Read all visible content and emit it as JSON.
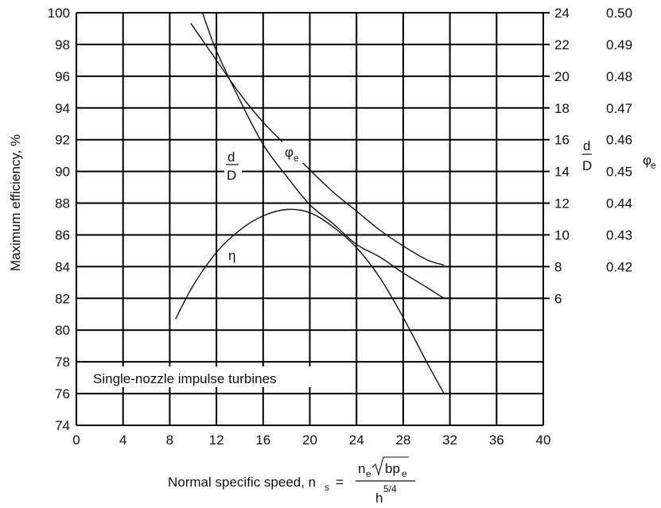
{
  "chart_data": {
    "type": "line",
    "title": "",
    "annotation": "Single-nozzle impulse turbines",
    "xlabel": {
      "text": "Normal specific speed, n",
      "sub": "s",
      "equals": "=",
      "num_n": "n",
      "num_n_sub": "e",
      "num_root": "bp",
      "num_root_sub": "e",
      "den": "h",
      "den_sup": "5/4"
    },
    "ylabel_left": "Maximum efficiency, %",
    "xlim": [
      0,
      40
    ],
    "x_ticks": [
      "0",
      "4",
      "8",
      "12",
      "16",
      "20",
      "24",
      "28",
      "32",
      "36",
      "40"
    ],
    "ylim_left": [
      74,
      100
    ],
    "y_ticks_left": [
      "74",
      "76",
      "78",
      "80",
      "82",
      "84",
      "86",
      "88",
      "90",
      "92",
      "94",
      "96",
      "98",
      "100"
    ],
    "right_axis_dD": {
      "label_num": "d",
      "label_den": "D",
      "ticks": [
        "24",
        "22",
        "20",
        "18",
        "16",
        "14",
        "12",
        "10",
        "8",
        "6"
      ]
    },
    "right_axis_phi": {
      "label": "φ",
      "label_sub": "e",
      "ticks": [
        "0.50",
        "0.49",
        "0.48",
        "0.47",
        "0.46",
        "0.45",
        "0.44",
        "0.43",
        "0.42"
      ]
    },
    "series": [
      {
        "name": "η",
        "axis": "efficiency",
        "x": [
          8.5,
          10,
          12,
          14,
          16,
          18,
          20,
          22,
          24,
          26,
          28,
          30,
          31.5
        ],
        "y": [
          80.7,
          82.8,
          84.9,
          86.3,
          87.2,
          87.6,
          87.4,
          86.5,
          85.2,
          83.3,
          80.8,
          78.0,
          76.0
        ]
      },
      {
        "name_num": "d",
        "name_den": "D",
        "axis": "d/D",
        "x": [
          10.8,
          12,
          14,
          16,
          18,
          20,
          22,
          24,
          26,
          28,
          30,
          31.5
        ],
        "y": [
          24.0,
          21.6,
          18.5,
          15.7,
          13.7,
          11.9,
          10.7,
          9.4,
          8.6,
          7.6,
          6.7,
          6.0
        ]
      },
      {
        "name": "φ",
        "name_sub": "e",
        "axis": "phi_e",
        "x": [
          9.8,
          12,
          14,
          16,
          18,
          20,
          22,
          24,
          26,
          28,
          30,
          31.5
        ],
        "y": [
          0.4967,
          0.485,
          0.4745,
          0.4655,
          0.458,
          0.4505,
          0.4435,
          0.4375,
          0.4315,
          0.4265,
          0.4222,
          0.4205
        ]
      }
    ]
  }
}
